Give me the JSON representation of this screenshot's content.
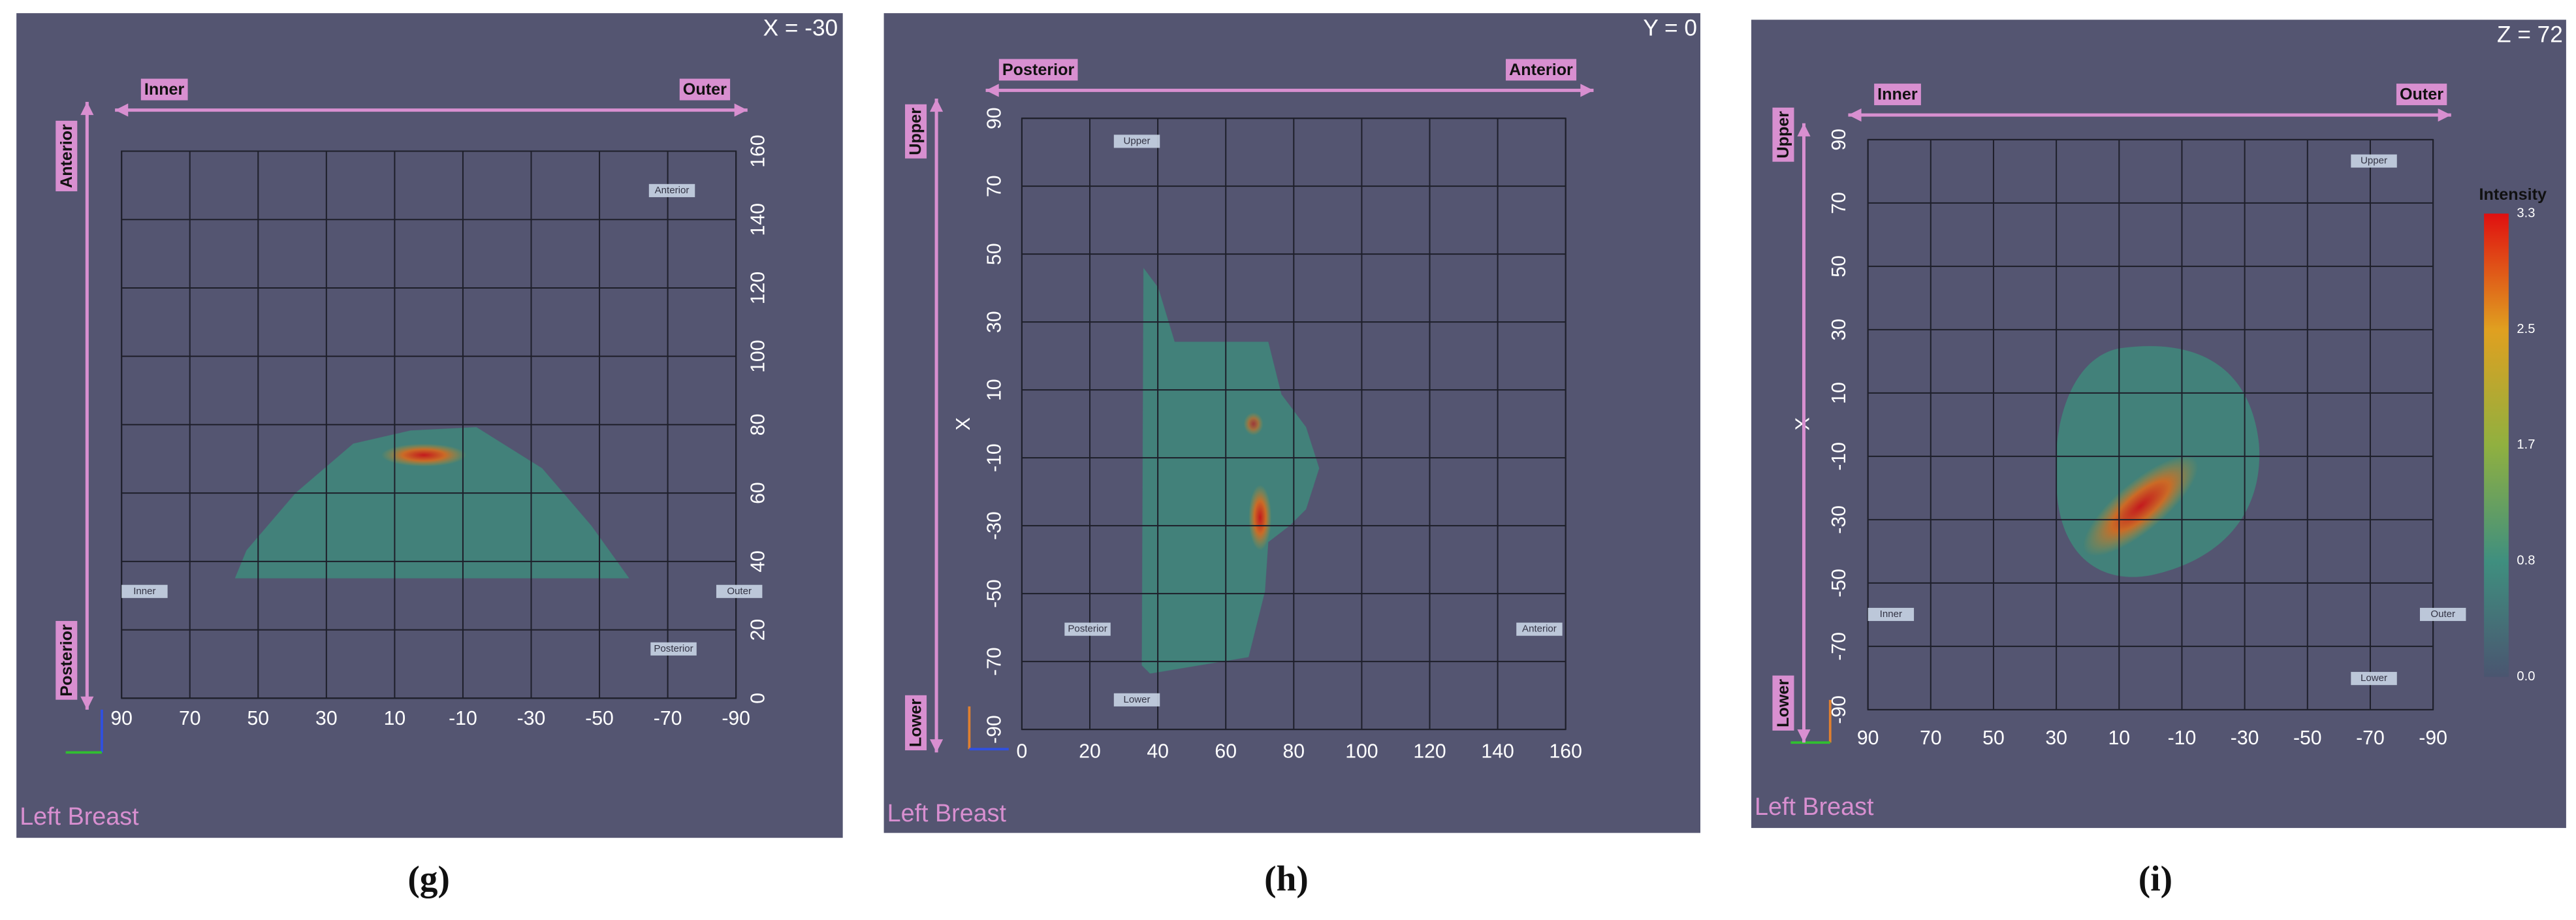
{
  "panels": [
    {
      "caption": "(g)",
      "slice": "X = -30",
      "footer": "Left Breast",
      "horizontal_direction": [
        "Inner",
        "Outer"
      ],
      "vertical_direction": [
        "Anterior",
        "Posterior"
      ],
      "x_ticks": [
        "90",
        "70",
        "50",
        "30",
        "10",
        "-10",
        "-30",
        "-50",
        "-70",
        "-90"
      ],
      "y_ticks": [
        "160",
        "140",
        "120",
        "100",
        "80",
        "60",
        "40",
        "20",
        "0"
      ],
      "markers": [
        "Anterior",
        "Inner",
        "Outer",
        "Posterior"
      ]
    },
    {
      "caption": "(h)",
      "slice": "Y = 0",
      "footer": "Left Breast",
      "horizontal_direction": [
        "Posterior",
        "Anterior"
      ],
      "vertical_direction": [
        "Upper",
        "Lower"
      ],
      "x_ticks": [
        "0",
        "20",
        "40",
        "60",
        "80",
        "100",
        "120",
        "140",
        "160"
      ],
      "y_ticks": [
        "90",
        "70",
        "50",
        "30",
        "10",
        "-10",
        "-30",
        "-50",
        "-70",
        "-90"
      ],
      "y_axis_label": "X",
      "markers": [
        "Upper",
        "Posterior",
        "Lower",
        "Anterior"
      ]
    },
    {
      "caption": "(i)",
      "slice": "Z = 72",
      "footer": "Left Breast",
      "horizontal_direction": [
        "Inner",
        "Outer"
      ],
      "vertical_direction": [
        "Upper",
        "Lower"
      ],
      "x_ticks": [
        "90",
        "70",
        "50",
        "30",
        "10",
        "-10",
        "-30",
        "-50",
        "-70",
        "-90"
      ],
      "y_ticks": [
        "90",
        "70",
        "50",
        "30",
        "10",
        "-10",
        "-30",
        "-50",
        "-70",
        "-90"
      ],
      "y_axis_label": "X",
      "markers": [
        "Upper",
        "Inner",
        "Outer",
        "Lower"
      ],
      "colorbar": {
        "title": "Intensity",
        "ticks": [
          "3.3",
          "2.5",
          "1.7",
          "0.8",
          "0.0"
        ]
      }
    }
  ]
}
